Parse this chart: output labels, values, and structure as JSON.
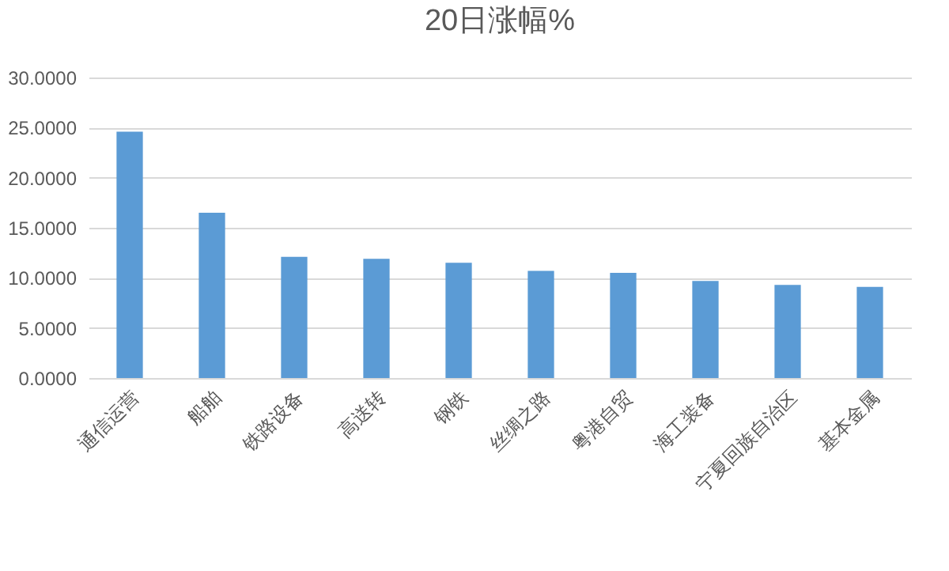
{
  "chart_data": {
    "type": "bar",
    "title": "20日涨幅%",
    "categories": [
      "通信运营",
      "船舶",
      "铁路设备",
      "高送转",
      "钢铁",
      "丝绸之路",
      "粤港自贸",
      "海工装备",
      "宁夏回族自治区",
      "基本金属"
    ],
    "values": [
      24.6,
      16.5,
      12.1,
      11.9,
      11.5,
      10.7,
      10.5,
      9.7,
      9.3,
      9.1
    ],
    "color": "#5b9bd5",
    "ylim": [
      0,
      30
    ],
    "yticks": [
      {
        "value": 0,
        "label": "0.0000"
      },
      {
        "value": 5,
        "label": "5.0000"
      },
      {
        "value": 10,
        "label": "10.0000"
      },
      {
        "value": 15,
        "label": "15.0000"
      },
      {
        "value": 20,
        "label": "20.0000"
      },
      {
        "value": 25,
        "label": "25.0000"
      },
      {
        "value": 30,
        "label": "30.0000"
      }
    ],
    "grid": "y"
  }
}
